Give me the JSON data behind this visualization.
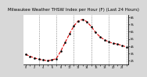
{
  "title": "Milwaukee Weather THSW Index per Hour (F) (Last 24 Hours)",
  "background_color": "#d8d8d8",
  "plot_bg_color": "#ffffff",
  "line_color": "#dd0000",
  "marker_color": "#000000",
  "grid_color": "#888888",
  "hours": [
    0,
    1,
    2,
    3,
    4,
    5,
    6,
    7,
    8,
    9,
    10,
    11,
    12,
    13,
    14,
    15,
    16,
    17,
    18,
    19,
    20,
    21,
    22,
    23
  ],
  "values": [
    34,
    31,
    29,
    27,
    26,
    25,
    26,
    28,
    38,
    50,
    62,
    73,
    80,
    82,
    79,
    72,
    64,
    58,
    54,
    51,
    49,
    48,
    46,
    44
  ],
  "ylim_min": 20,
  "ylim_max": 88,
  "yticks": [
    25,
    35,
    45,
    55,
    65,
    75,
    85
  ],
  "ytick_labels": [
    "25",
    "35",
    "45",
    "55",
    "65",
    "75",
    "85"
  ],
  "title_fontsize": 4.0,
  "vgrid_hours": [
    3,
    7,
    11,
    15,
    19,
    23
  ],
  "marker_size": 1.8,
  "line_width": 0.8
}
